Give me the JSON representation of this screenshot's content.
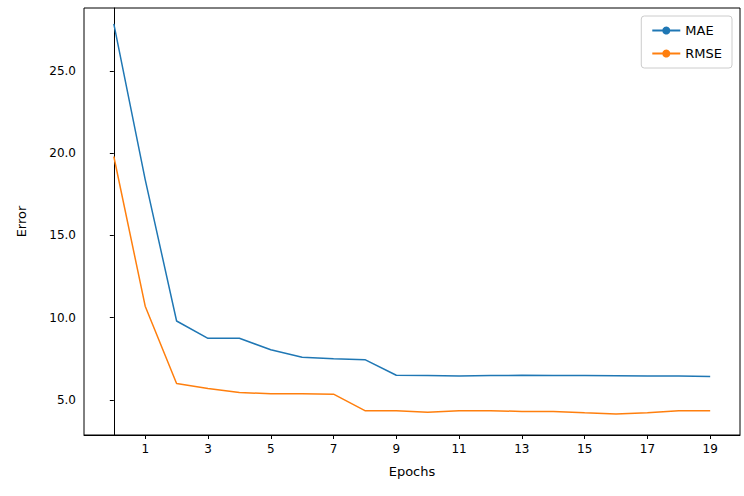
{
  "chart_data": {
    "type": "line",
    "x_label": "Epochs",
    "y_label": "Error",
    "x": [
      0,
      1,
      2,
      3,
      4,
      5,
      6,
      7,
      8,
      9,
      10,
      11,
      12,
      13,
      14,
      15,
      16,
      17,
      18,
      19
    ],
    "series": [
      {
        "name": "MAE",
        "color": "#1f77b4",
        "values": [
          27.86,
          18.4,
          9.8,
          8.75,
          8.75,
          8.05,
          7.6,
          7.5,
          7.45,
          6.5,
          6.48,
          6.45,
          6.48,
          6.5,
          6.48,
          6.48,
          6.47,
          6.45,
          6.45,
          6.42
        ]
      },
      {
        "name": "RMSE",
        "color": "#ff7f0e",
        "values": [
          19.8,
          10.7,
          6.0,
          5.7,
          5.45,
          5.38,
          5.38,
          5.35,
          4.35,
          4.35,
          4.25,
          4.35,
          4.35,
          4.3,
          4.3,
          4.22,
          4.15,
          4.22,
          4.35,
          4.35
        ]
      }
    ],
    "xlim": [
      -0.95,
      19.95
    ],
    "xticks": [
      1,
      3,
      5,
      7,
      9,
      11,
      13,
      15,
      17,
      19
    ],
    "ylim": [
      2.87,
      28.83
    ],
    "yticks": [
      {
        "value": 5,
        "label": "5.0"
      },
      {
        "value": 10,
        "label": "10.0"
      },
      {
        "value": 15,
        "label": "15.0"
      },
      {
        "value": 20,
        "label": "20.0"
      },
      {
        "value": 25,
        "label": "25.0"
      }
    ],
    "grid": false,
    "legend": "upper right"
  }
}
